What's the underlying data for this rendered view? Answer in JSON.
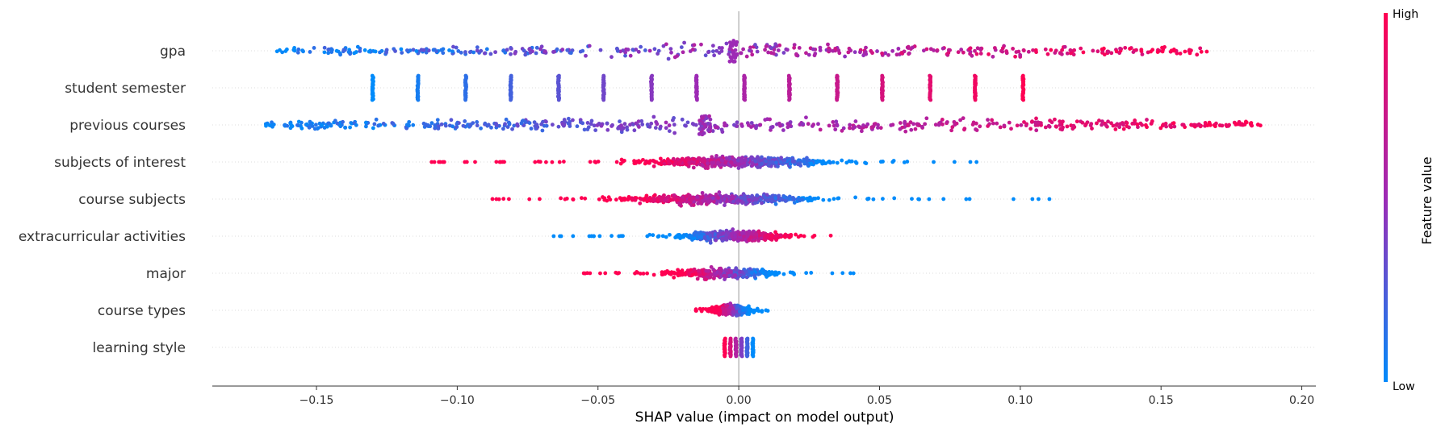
{
  "chart_data": {
    "type": "scatter",
    "subtype": "shap-beeswarm",
    "title": "",
    "xlabel": "SHAP value (impact on model output)",
    "ylabel": "",
    "xlim": [
      -0.187,
      0.205
    ],
    "xticks": [
      -0.15,
      -0.1,
      -0.05,
      0.0,
      0.05,
      0.1,
      0.15,
      0.2
    ],
    "xtick_labels": [
      "−0.15",
      "−0.10",
      "−0.05",
      "0.00",
      "0.05",
      "0.10",
      "0.15",
      "0.20"
    ],
    "grid": "horizontal dotted row guides",
    "zero_line": 0.0,
    "colormap": {
      "low": "#008bfb",
      "mid": "#9d2ab5",
      "high": "#ff0052"
    },
    "colorbar": {
      "title": "Feature value",
      "high_label": "High",
      "low_label": "Low",
      "placement": "right"
    },
    "features": [
      {
        "name": "gpa",
        "kind": "continuous",
        "range": [
          -0.165,
          0.168
        ],
        "corr": 1,
        "n": 420,
        "spread": 0.35
      },
      {
        "name": "student semester",
        "kind": "discrete",
        "levels": [
          -0.13,
          -0.114,
          -0.097,
          -0.081,
          -0.064,
          -0.048,
          -0.031,
          -0.015,
          0.002,
          0.018,
          0.035,
          0.051,
          0.068,
          0.084,
          0.101
        ],
        "corr": 1
      },
      {
        "name": "previous courses",
        "kind": "continuous",
        "range": [
          -0.169,
          0.186
        ],
        "corr": 1,
        "n": 560,
        "spread": 0.22,
        "center_cluster": -0.012
      },
      {
        "name": "subjects of interest",
        "kind": "centered",
        "range": [
          -0.111,
          0.089
        ],
        "core": [
          -0.05,
          0.05
        ],
        "corr": -1,
        "n": 620
      },
      {
        "name": "course subjects",
        "kind": "centered",
        "range": [
          -0.088,
          0.111
        ],
        "core": [
          -0.055,
          0.045
        ],
        "corr": -1,
        "n": 520
      },
      {
        "name": "extracurricular activities",
        "kind": "centered",
        "range": [
          -0.066,
          0.033
        ],
        "core": [
          -0.03,
          0.028
        ],
        "corr": 1,
        "n": 440
      },
      {
        "name": "major",
        "kind": "centered",
        "range": [
          -0.056,
          0.043
        ],
        "core": [
          -0.035,
          0.025
        ],
        "corr": -1,
        "n": 380
      },
      {
        "name": "course types",
        "kind": "centered",
        "range": [
          -0.016,
          0.015
        ],
        "core": [
          -0.015,
          0.01
        ],
        "corr": -1,
        "n": 300
      },
      {
        "name": "learning style",
        "kind": "discrete",
        "levels": [
          -0.005,
          -0.003,
          -0.001,
          0.001,
          0.003,
          0.005
        ],
        "corr": -1
      }
    ]
  }
}
